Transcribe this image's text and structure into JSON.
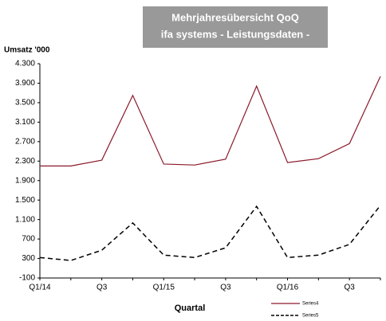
{
  "chart_data": {
    "type": "line",
    "title": "Mehrjahresübersicht QoQ",
    "subtitle": "ifa systems - Leistungsdaten -",
    "y_label": "Umsatz '000",
    "x_label": "Quartal",
    "categories": [
      "Q1/14",
      null,
      "Q3",
      null,
      "Q1/15",
      null,
      "Q3",
      null,
      "Q1/16",
      null,
      "Q3",
      null
    ],
    "series": [
      {
        "name": "Series4",
        "color": "#8b1a2b",
        "dash": false,
        "values": [
          2200,
          2200,
          2320,
          3650,
          2240,
          2220,
          2340,
          3840,
          2270,
          2350,
          2660,
          4040
        ]
      },
      {
        "name": "Series5",
        "color": "#000000",
        "dash": true,
        "values": [
          320,
          260,
          470,
          1030,
          370,
          320,
          520,
          1370,
          320,
          370,
          590,
          1390
        ]
      }
    ],
    "ylim": [
      -100,
      4300
    ],
    "yticks": [
      -100,
      300,
      700,
      {
        "value": 1100,
        "label": "1.100"
      },
      {
        "value": 1500,
        "label": "1.500"
      },
      {
        "value": 1900,
        "label": "1.900"
      },
      {
        "value": 2300,
        "label": "2.300"
      },
      {
        "value": 2700,
        "label": "2.700"
      },
      {
        "value": 3100,
        "label": "3.100"
      },
      {
        "value": 3500,
        "label": "3.500"
      },
      {
        "value": 3900,
        "label": "3.900"
      },
      {
        "value": 4300,
        "label": "4.300"
      }
    ],
    "grid": false,
    "legend": "bottom-right"
  }
}
